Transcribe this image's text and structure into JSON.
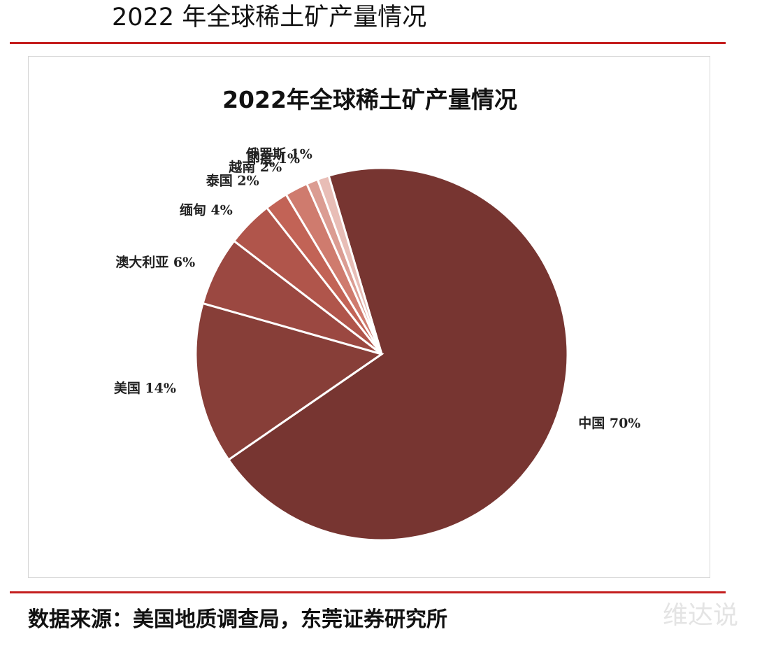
{
  "header": {
    "title": "2022 年全球稀土矿产量情况"
  },
  "chart_data": {
    "type": "pie",
    "title": "2022年全球稀土矿产量情况",
    "unit": "%",
    "slices": [
      {
        "label": "中国",
        "value": 70,
        "display": "中国 70%",
        "color": "#773531"
      },
      {
        "label": "美国",
        "value": 14,
        "display": "美国 14%",
        "color": "#873e38"
      },
      {
        "label": "澳大利亚",
        "value": 6,
        "display": "澳大利亚 6%",
        "color": "#9b4841"
      },
      {
        "label": "缅甸",
        "value": 4,
        "display": "缅甸 4%",
        "color": "#b0554b"
      },
      {
        "label": "泰国",
        "value": 2,
        "display": "泰国 2%",
        "color": "#c26356"
      },
      {
        "label": "越南",
        "value": 2,
        "display": "越南 2%",
        "color": "#cf7b6e"
      },
      {
        "label": "印度",
        "value": 1,
        "display": "印度 1%",
        "color": "#db9c92"
      },
      {
        "label": "俄罗斯",
        "value": 1,
        "display": "俄罗斯 1%",
        "color": "#e8bdb6"
      }
    ],
    "legend": "none",
    "data_labels": "outside"
  },
  "footer": {
    "source": "数据来源：美国地质调查局，东莞证券研究所",
    "watermark": "维达说"
  }
}
